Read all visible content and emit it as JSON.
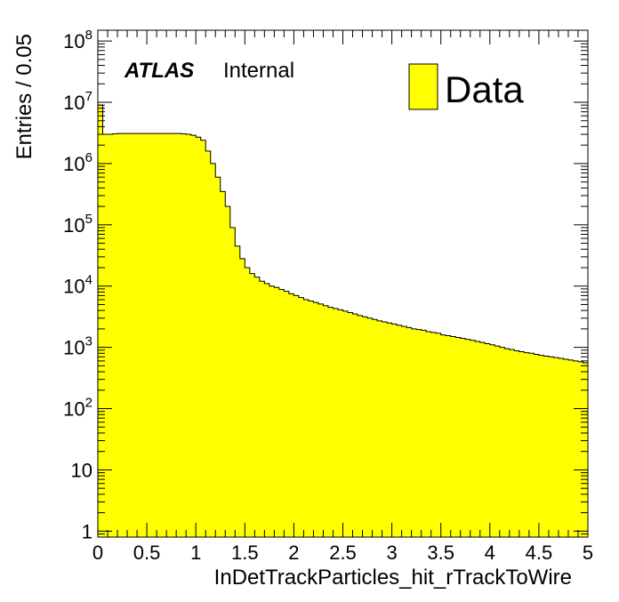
{
  "chart_data": {
    "type": "bar",
    "bin_width": 0.05,
    "x_range": [
      0,
      5
    ],
    "ylim": [
      0.8,
      150000000
    ],
    "y_scale": "log",
    "xlabel": "InDetTrackParticles_hit_rTrackToWire",
    "ylabel": "Entries / 0.05",
    "atlas_label": "ATLAS",
    "atlas_sublabel": "Internal",
    "legend": {
      "position": "top-right",
      "entries": [
        {
          "name": "Data",
          "color": "#ffff00"
        }
      ]
    },
    "series": [
      {
        "name": "Data",
        "color": "#ffff00",
        "bin_edges_start": 0,
        "values": [
          9000000,
          3000000,
          3000000,
          3050000,
          3100000,
          3100000,
          3100000,
          3100000,
          3100000,
          3100000,
          3100000,
          3100000,
          3100000,
          3100000,
          3100000,
          3100000,
          3100000,
          3050000,
          3000000,
          2900000,
          2700000,
          2400000,
          1600000,
          1000000,
          600000,
          350000,
          200000,
          90000,
          45000,
          28000,
          20000,
          16000,
          14000,
          12000,
          11000,
          10000,
          9500,
          8800,
          8200,
          7500,
          7000,
          6500,
          6000,
          5700,
          5400,
          5100,
          4800,
          4500,
          4300,
          4100,
          3900,
          3700,
          3500,
          3300,
          3150,
          3000,
          2850,
          2700,
          2600,
          2500,
          2400,
          2300,
          2200,
          2100,
          2000,
          1950,
          1900,
          1800,
          1750,
          1700,
          1600,
          1550,
          1500,
          1450,
          1400,
          1350,
          1300,
          1250,
          1200,
          1150,
          1100,
          1050,
          1000,
          950,
          920,
          880,
          850,
          820,
          800,
          770,
          740,
          720,
          700,
          680,
          660,
          640,
          620,
          600,
          580,
          560
        ]
      }
    ],
    "x_ticks": [
      {
        "value": 0,
        "label": "0"
      },
      {
        "value": 0.5,
        "label": "0.5"
      },
      {
        "value": 1,
        "label": "1"
      },
      {
        "value": 1.5,
        "label": "1.5"
      },
      {
        "value": 2,
        "label": "2"
      },
      {
        "value": 2.5,
        "label": "2.5"
      },
      {
        "value": 3,
        "label": "3"
      },
      {
        "value": 3.5,
        "label": "3.5"
      },
      {
        "value": 4,
        "label": "4"
      },
      {
        "value": 4.5,
        "label": "4.5"
      },
      {
        "value": 5,
        "label": "5"
      }
    ],
    "y_ticks": [
      {
        "exp": 0,
        "base": "1",
        "sup": ""
      },
      {
        "exp": 1,
        "base": "10",
        "sup": ""
      },
      {
        "exp": 2,
        "base": "10",
        "sup": "2"
      },
      {
        "exp": 3,
        "base": "10",
        "sup": "3"
      },
      {
        "exp": 4,
        "base": "10",
        "sup": "4"
      },
      {
        "exp": 5,
        "base": "10",
        "sup": "5"
      },
      {
        "exp": 6,
        "base": "10",
        "sup": "6"
      },
      {
        "exp": 7,
        "base": "10",
        "sup": "7"
      },
      {
        "exp": 8,
        "base": "10",
        "sup": "8"
      }
    ]
  }
}
